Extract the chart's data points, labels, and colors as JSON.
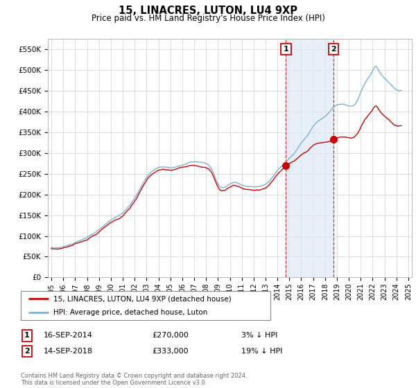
{
  "title": "15, LINACRES, LUTON, LU4 9XP",
  "subtitle": "Price paid vs. HM Land Registry's House Price Index (HPI)",
  "ylim": [
    0,
    575000
  ],
  "yticks": [
    0,
    50000,
    100000,
    150000,
    200000,
    250000,
    300000,
    350000,
    400000,
    450000,
    500000,
    550000
  ],
  "ytick_labels": [
    "£0",
    "£50K",
    "£100K",
    "£150K",
    "£200K",
    "£250K",
    "£300K",
    "£350K",
    "£400K",
    "£450K",
    "£500K",
    "£550K"
  ],
  "hpi_color": "#7bafd4",
  "hpi_fill_color": "#ddeaf6",
  "property_color": "#cc0000",
  "sale1_year": 2014.71,
  "sale1_price": 270000,
  "sale2_year": 2018.71,
  "sale2_price": 333000,
  "legend_line1": "15, LINACRES, LUTON, LU4 9XP (detached house)",
  "legend_line2": "HPI: Average price, detached house, Luton",
  "sale1_date": "16-SEP-2014",
  "sale1_price_str": "£270,000",
  "sale1_pct": "3% ↓ HPI",
  "sale2_date": "14-SEP-2018",
  "sale2_price_str": "£333,000",
  "sale2_pct": "19% ↓ HPI",
  "footer": "Contains HM Land Registry data © Crown copyright and database right 2024.\nThis data is licensed under the Open Government Licence v3.0.",
  "background_color": "#ffffff",
  "grid_color": "#d0d0d0"
}
